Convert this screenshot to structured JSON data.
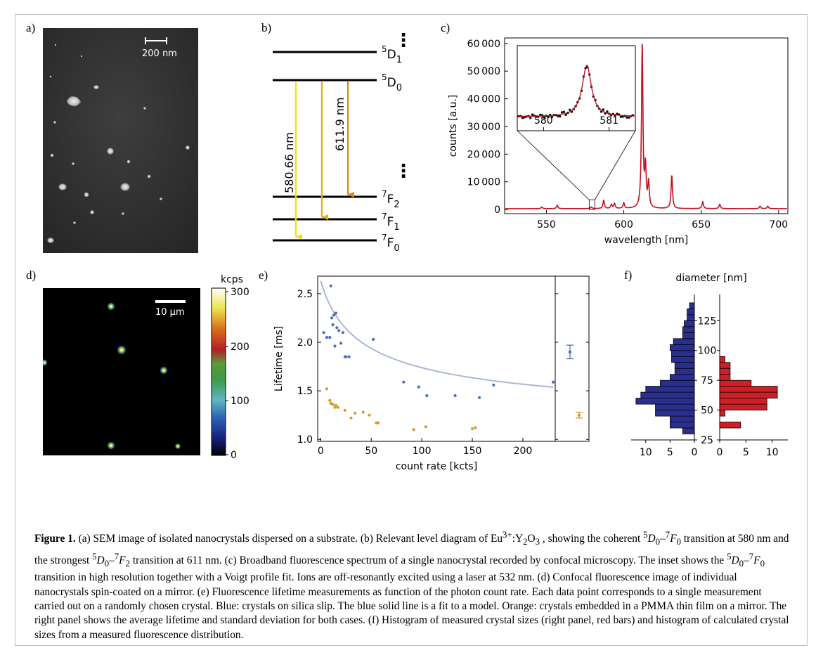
{
  "panels": {
    "a": {
      "label": "a)",
      "scale_bar": "200 nm"
    },
    "b": {
      "label": "b)",
      "vdots": "⋮",
      "levels": [
        {
          "base": "5",
          "main": "D",
          "sub": "1"
        },
        {
          "base": "5",
          "main": "D",
          "sub": "0"
        },
        {
          "base": "7",
          "main": "F",
          "sub": "2"
        },
        {
          "base": "7",
          "main": "F",
          "sub": "1"
        },
        {
          "base": "7",
          "main": "F",
          "sub": "0"
        }
      ],
      "transitions": [
        "580.66 nm",
        "611.9 nm"
      ],
      "colors": {
        "yellow": "#f5df12",
        "gold": "#e3b21a",
        "orange": "#d88918"
      }
    },
    "c": {
      "label": "c)"
    },
    "d": {
      "label": "d)",
      "scale_bar": "10 µm",
      "colorbar_unit": "kcps",
      "colorbar_ticks": [
        "300",
        "200",
        "100",
        "0"
      ]
    },
    "e": {
      "label": "e)"
    },
    "f": {
      "label": "f)"
    }
  },
  "chart_data": [
    {
      "panel": "c",
      "type": "line",
      "xlabel": "wavelength [nm]",
      "ylabel": "counts [a.u.]",
      "xlim": [
        523,
        706
      ],
      "ylim": [
        -1500,
        62000
      ],
      "xticks": [
        "550",
        "600",
        "650",
        "700"
      ],
      "yticks": [
        "0",
        "10 000",
        "20 000",
        "30 000",
        "40 000",
        "50 000",
        "60 000"
      ],
      "line_color": "#c0121f",
      "peaks": [
        {
          "x": 547,
          "y": 600
        },
        {
          "x": 557,
          "y": 1200
        },
        {
          "x": 579,
          "y": 600
        },
        {
          "x": 587,
          "y": 3000
        },
        {
          "x": 592,
          "y": 1400
        },
        {
          "x": 594,
          "y": 1800
        },
        {
          "x": 600,
          "y": 2000
        },
        {
          "x": 611.9,
          "y": 59000
        },
        {
          "x": 614,
          "y": 14000
        },
        {
          "x": 616,
          "y": 9000
        },
        {
          "x": 631,
          "y": 12000
        },
        {
          "x": 651,
          "y": 2500
        },
        {
          "x": 662,
          "y": 1600
        },
        {
          "x": 688,
          "y": 900
        },
        {
          "x": 693,
          "y": 900
        }
      ],
      "baseline": 300,
      "inset": {
        "xticks": [
          "580",
          "581"
        ],
        "xlim": [
          579.6,
          581.4
        ],
        "center": 580.66,
        "fit_color": "#c0121f",
        "point_color": "#111111"
      }
    },
    {
      "panel": "e",
      "type": "scatter",
      "xlabel": "count rate [kcts]",
      "ylabel": "Lifetime [ms]",
      "xlim": [
        -3,
        232
      ],
      "ylim": [
        0.98,
        2.68
      ],
      "xticks": [
        "0",
        "50",
        "100",
        "150",
        "200"
      ],
      "yticks": [
        "1.0",
        "1.5",
        "2.0",
        "2.5"
      ],
      "series": [
        {
          "color": "#4f6db4",
          "x": [
            3,
            6,
            9,
            10,
            11,
            12,
            13,
            14,
            15,
            16,
            18,
            20,
            22,
            24,
            25,
            28,
            52,
            82,
            97,
            105,
            133,
            157,
            171,
            230
          ],
          "y": [
            2.1,
            2.05,
            2.05,
            2.58,
            2.25,
            2.18,
            2.28,
            1.96,
            2.3,
            2.15,
            2.12,
            1.99,
            2.1,
            1.85,
            1.85,
            1.85,
            2.03,
            1.59,
            1.54,
            1.45,
            1.45,
            1.43,
            1.56,
            1.59
          ]
        },
        {
          "color": "#d49a2e",
          "x": [
            6,
            9,
            10,
            12,
            14,
            15,
            17,
            24,
            30,
            34,
            42,
            48,
            55,
            57,
            92,
            104,
            150,
            153
          ],
          "y": [
            1.52,
            1.4,
            1.37,
            1.36,
            1.33,
            1.35,
            1.33,
            1.3,
            1.22,
            1.27,
            1.28,
            1.25,
            1.17,
            1.17,
            1.1,
            1.13,
            1.11,
            1.12
          ]
        }
      ],
      "fit_color": "#a9b6dc",
      "side_panel": {
        "blue": {
          "mean": 1.9,
          "err": 0.07
        },
        "orange": {
          "mean": 1.25,
          "err": 0.03
        }
      }
    },
    {
      "panel": "f",
      "type": "bar",
      "title": "diameter [nm]",
      "ylim": [
        25,
        147
      ],
      "yticks": [
        "25",
        "50",
        "75",
        "100",
        "125"
      ],
      "left": {
        "color": "#2a2f8f",
        "xticks": [
          "10",
          "5",
          "0"
        ],
        "xmax": 13,
        "bins": [
          [
            30,
            35,
            2.4
          ],
          [
            35,
            40,
            5
          ],
          [
            40,
            45,
            5
          ],
          [
            45,
            50,
            8
          ],
          [
            50,
            55,
            8
          ],
          [
            55,
            60,
            12
          ],
          [
            60,
            65,
            11
          ],
          [
            65,
            70,
            10
          ],
          [
            70,
            75,
            7
          ],
          [
            75,
            80,
            5
          ],
          [
            80,
            85,
            4
          ],
          [
            85,
            90,
            4
          ],
          [
            90,
            95,
            4.7
          ],
          [
            95,
            100,
            4.7
          ],
          [
            100,
            105,
            5
          ],
          [
            105,
            110,
            4.3
          ],
          [
            110,
            115,
            2.4
          ],
          [
            115,
            120,
            2.4
          ],
          [
            120,
            125,
            2.1
          ],
          [
            125,
            130,
            1.5
          ],
          [
            130,
            135,
            1.5
          ],
          [
            135,
            140,
            1
          ]
        ]
      },
      "right": {
        "color": "#cf1f26",
        "xticks": [
          "0",
          "5",
          "10"
        ],
        "xmax": 13,
        "bins": [
          [
            35,
            40,
            4
          ],
          [
            40,
            45,
            0
          ],
          [
            45,
            50,
            1
          ],
          [
            50,
            55,
            9
          ],
          [
            55,
            60,
            9
          ],
          [
            60,
            65,
            11
          ],
          [
            65,
            70,
            11
          ],
          [
            70,
            75,
            6
          ],
          [
            75,
            80,
            2
          ],
          [
            80,
            85,
            2
          ],
          [
            85,
            90,
            2
          ],
          [
            90,
            95,
            1
          ]
        ]
      }
    }
  ],
  "caption": {
    "figure_label": "Figure 1.",
    "t1": " (a) SEM image of isolated nanocrystals dispersed on a substrate. (b) Relevant level diagram of Eu",
    "t1_sup": "3+",
    "t2": ":Y",
    "t2_sub": "2",
    "t3": "O",
    "t3_sub": "3",
    "t4": " , showing the coherent ",
    "t5": " transition at 580 nm and the strongest ",
    "t6": " transition at 611 nm. (c) Broadband fluorescence spectrum of a single nanocrystal recorded by confocal microscopy. The inset shows the ",
    "t7": " transition in high resolution together with a Voigt profile fit. Ions are off-resonantly excited using a laser at 532 nm. (d) Confocal fluorescence image of individual nanocrystals spin-coated on a mirror. (e) Fluorescence lifetime measurements as function of the photon count rate. Each data point corresponds to a single measurement carried out on a randomly chosen crystal. Blue: crystals on silica slip. The blue solid line is a fit to a model. Orange: crystals embedded in a PMMA thin film on a mirror. The right panel shows the average lifetime and standard deviation for both cases. (f) Histogram of measured crystal sizes (right panel, red bars) and histogram of calculated crystal sizes from a measured fluorescence distribution.",
    "trans_a": {
      "s1": "5",
      "m1": "D",
      "b1": "0",
      "dash": "–",
      "s2": "7",
      "m2": "F",
      "b2": "0"
    },
    "trans_b": {
      "s1": "5",
      "m1": "D",
      "b1": "0",
      "dash": "–",
      "s2": "7",
      "m2": "F",
      "b2": "2"
    }
  }
}
